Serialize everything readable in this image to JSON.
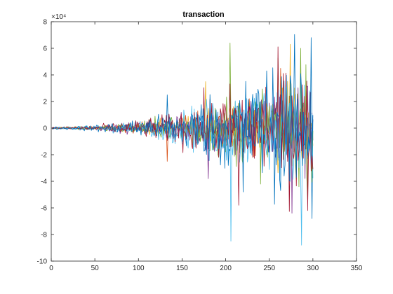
{
  "chart_data": {
    "type": "line",
    "title": "transaction",
    "xlabel": "",
    "ylabel": "",
    "xlim": [
      0,
      350
    ],
    "ylim": [
      -100000,
      80000
    ],
    "x_ticks": [
      0,
      50,
      100,
      150,
      200,
      250,
      300,
      350
    ],
    "y_ticks": [
      -10,
      -8,
      -6,
      -4,
      -2,
      0,
      2,
      4,
      6,
      8
    ],
    "y_exponent_label": "×10⁴",
    "grid": false,
    "legend": "none",
    "x_count": 300,
    "series_count": 8,
    "series_colors": [
      "#0072BD",
      "#D95319",
      "#EDB120",
      "#7E2F8E",
      "#77AC30",
      "#4DBEEE",
      "#A2142F",
      "#0072BD"
    ],
    "envelope": [
      {
        "x": 0,
        "amp": 300
      },
      {
        "x": 50,
        "amp": 900
      },
      {
        "x": 100,
        "amp": 2500
      },
      {
        "x": 130,
        "amp": 4000
      },
      {
        "x": 150,
        "amp": 6000
      },
      {
        "x": 200,
        "amp": 12000
      },
      {
        "x": 250,
        "amp": 17000
      },
      {
        "x": 300,
        "amp": 22000
      }
    ],
    "spikes": [
      {
        "x": 133,
        "y": 25000
      },
      {
        "x": 133,
        "y": -25000
      },
      {
        "x": 177,
        "y": 35000
      },
      {
        "x": 180,
        "y": -38000
      },
      {
        "x": 205,
        "y": 64000
      },
      {
        "x": 206,
        "y": -85000
      },
      {
        "x": 215,
        "y": -58000
      },
      {
        "x": 220,
        "y": -48000
      },
      {
        "x": 247,
        "y": 43000
      },
      {
        "x": 263,
        "y": 45000
      },
      {
        "x": 274,
        "y": 63000
      },
      {
        "x": 276,
        "y": -64000
      },
      {
        "x": 286,
        "y": 60000
      },
      {
        "x": 287,
        "y": -88000
      },
      {
        "x": 294,
        "y": -62000
      },
      {
        "x": 298,
        "y": 68000
      },
      {
        "x": 299,
        "y": -68000
      }
    ]
  }
}
